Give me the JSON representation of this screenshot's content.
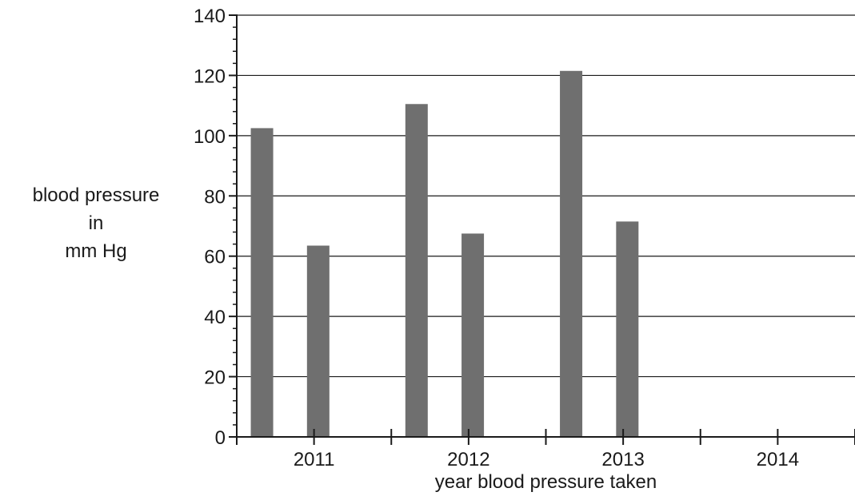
{
  "chart_data": {
    "type": "bar",
    "categories": [
      "2011",
      "2012",
      "2013",
      "2014"
    ],
    "series": [
      {
        "values": [
          102.5,
          110.5,
          121.5,
          null
        ]
      },
      {
        "values": [
          63.5,
          67.5,
          71.5,
          null
        ]
      }
    ],
    "xlabel": "year blood pressure taken",
    "ylabel_lines": [
      "blood pressure",
      "in",
      "mm Hg"
    ],
    "ylim": [
      0,
      140
    ],
    "yticks": [
      0,
      20,
      40,
      60,
      80,
      100,
      120,
      140
    ],
    "y_minor_step": 4,
    "grid": true,
    "bar_color": "#6f6f6f"
  }
}
